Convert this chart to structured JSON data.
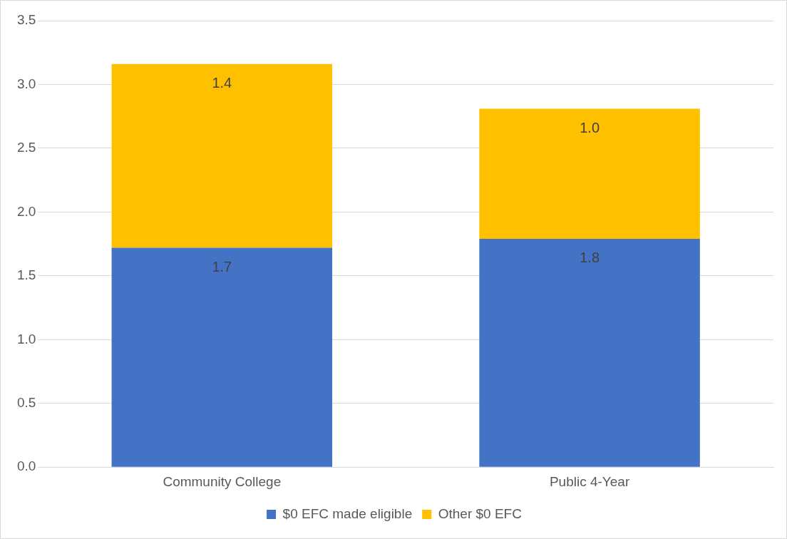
{
  "chart_data": {
    "type": "bar",
    "stacked": true,
    "categories": [
      "Community College",
      "Public 4-Year"
    ],
    "series": [
      {
        "name": "$0 EFC made eligible",
        "color": "#4472c4",
        "values": [
          1.72,
          1.79
        ],
        "value_labels": [
          "1.7",
          "1.8"
        ]
      },
      {
        "name": "Other $0 EFC",
        "color": "#ffc000",
        "values": [
          1.44,
          1.02
        ],
        "value_labels": [
          "1.4",
          "1.0"
        ]
      }
    ],
    "ylim": [
      0,
      3.5
    ],
    "yticks": [
      {
        "value": 0,
        "label": "0.0"
      },
      {
        "value": 0.5,
        "label": "0.5"
      },
      {
        "value": 1,
        "label": "1.0"
      },
      {
        "value": 1.5,
        "label": "1.5"
      },
      {
        "value": 2,
        "label": "2.0"
      },
      {
        "value": 2.5,
        "label": "2.5"
      },
      {
        "value": 3,
        "label": "3.0"
      },
      {
        "value": 3.5,
        "label": "3.5"
      }
    ],
    "grid": "y",
    "legend": "bottom"
  }
}
